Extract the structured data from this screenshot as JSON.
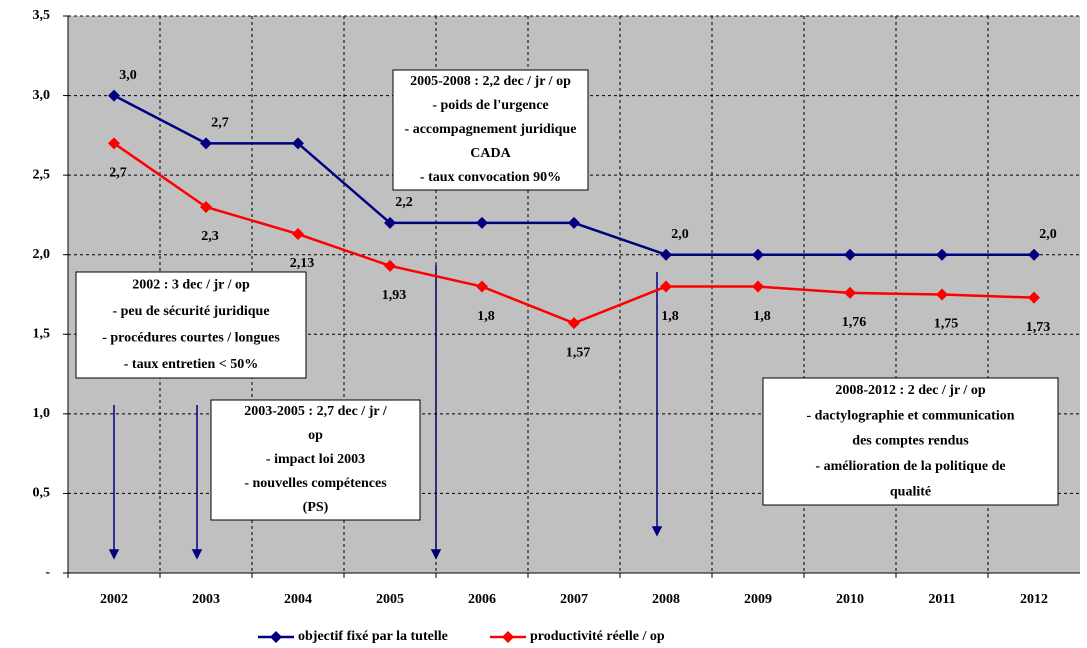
{
  "chart_data": {
    "type": "line",
    "categories": [
      "2002",
      "2003",
      "2004",
      "2005",
      "2006",
      "2007",
      "2008",
      "2009",
      "2010",
      "2011",
      "2012"
    ],
    "series": [
      {
        "name": "objectif fixé par la tutelle",
        "color": "#000080",
        "values": [
          3.0,
          2.7,
          2.7,
          2.2,
          2.2,
          2.2,
          2.0,
          2.0,
          2.0,
          2.0,
          2.0
        ],
        "value_labels": [
          "3,0",
          "2,7",
          null,
          "2,2",
          null,
          null,
          "2,0",
          null,
          null,
          null,
          "2,0"
        ]
      },
      {
        "name": "productivité réelle / op",
        "color": "#ff0000",
        "values": [
          2.7,
          2.3,
          2.13,
          1.93,
          1.8,
          1.57,
          1.8,
          1.8,
          1.76,
          1.75,
          1.73
        ],
        "value_labels": [
          "2,7",
          "2,3",
          "2,13",
          "1,93",
          "1,8",
          "1,57",
          "1,8",
          "1,8",
          "1,76",
          "1,75",
          "1,73"
        ]
      }
    ],
    "ylim": [
      0,
      3.5
    ],
    "yticks": [
      {
        "value": 0,
        "label": "-"
      },
      {
        "value": 0.5,
        "label": "0,5"
      },
      {
        "value": 1,
        "label": "1,0"
      },
      {
        "value": 1.5,
        "label": "1,5"
      },
      {
        "value": 2,
        "label": "2,0"
      },
      {
        "value": 2.5,
        "label": "2,5"
      },
      {
        "value": 3,
        "label": "3,0"
      },
      {
        "value": 3.5,
        "label": "3,5"
      }
    ],
    "grid": true,
    "legend": "bottom",
    "annotations": [
      [
        "2005-2008 : 2,2 dec / jr / op",
        "- poids de l'urgence",
        "- accompagnement juridique",
        "CADA",
        "- taux convocation 90%"
      ],
      [
        "2002 : 3 dec / jr / op",
        "- peu de sécurité juridique",
        "- procédures courtes / longues",
        "- taux entretien < 50%"
      ],
      [
        "2003-2005 : 2,7 dec / jr /",
        "op",
        "- impact loi 2003",
        "- nouvelles compétences",
        "(PS)"
      ],
      [
        "2008-2012 : 2 dec / jr / op",
        "- dactylographie et communication",
        "des comptes rendus",
        "- amélioration de la politique de",
        "qualité"
      ]
    ]
  }
}
